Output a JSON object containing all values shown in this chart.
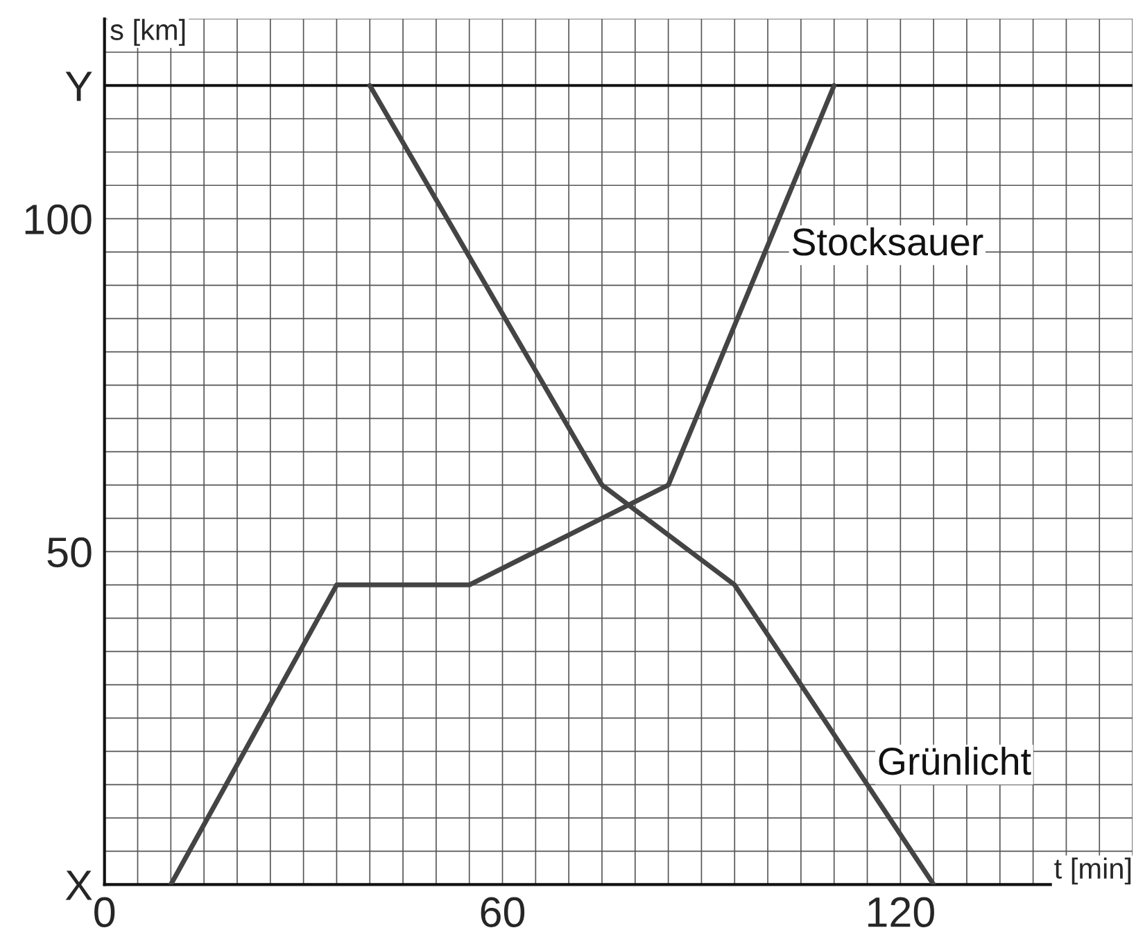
{
  "chart_data": {
    "type": "line",
    "xlabel": "t [min]",
    "ylabel": "s [km]",
    "series": [
      {
        "name": "Stocksauer",
        "color": "#444444",
        "x": [
          10,
          35,
          55,
          85,
          110
        ],
        "values": [
          0,
          45,
          45,
          60,
          120
        ]
      },
      {
        "name": "Grünlicht",
        "color": "#444444",
        "x": [
          40,
          75,
          95,
          125
        ],
        "values": [
          120,
          60,
          45,
          0
        ]
      }
    ],
    "xlim": [
      0,
      155
    ],
    "ylim": [
      0,
      130
    ],
    "xticks": [
      0,
      {
        "value": 5,
        "label": null
      },
      {
        "value": 10,
        "label": null
      },
      {
        "value": 15,
        "label": null
      },
      {
        "value": 20,
        "label": null
      },
      {
        "value": 25,
        "label": null
      },
      {
        "value": 30,
        "label": null
      },
      {
        "value": 35,
        "label": null
      },
      {
        "value": 40,
        "label": null
      },
      {
        "value": 45,
        "label": null
      },
      {
        "value": 50,
        "label": null
      },
      {
        "value": 55,
        "label": null
      },
      60,
      {
        "value": 65,
        "label": null
      },
      {
        "value": 70,
        "label": null
      },
      {
        "value": 75,
        "label": null
      },
      {
        "value": 80,
        "label": null
      },
      {
        "value": 85,
        "label": null
      },
      {
        "value": 90,
        "label": null
      },
      {
        "value": 95,
        "label": null
      },
      {
        "value": 100,
        "label": null
      },
      {
        "value": 105,
        "label": null
      },
      {
        "value": 110,
        "label": null
      },
      {
        "value": 115,
        "label": null
      },
      120,
      {
        "value": 125,
        "label": null
      },
      {
        "value": 130,
        "label": null
      },
      {
        "value": 135,
        "label": null
      },
      {
        "value": 140,
        "label": null
      },
      {
        "value": 145,
        "label": null
      },
      {
        "value": 150,
        "label": null
      },
      {
        "value": 155,
        "label": null
      }
    ],
    "yticks": [
      {
        "value": 0,
        "label": "X"
      },
      {
        "value": 5,
        "label": null
      },
      {
        "value": 10,
        "label": null
      },
      {
        "value": 15,
        "label": null
      },
      {
        "value": 20,
        "label": null
      },
      {
        "value": 25,
        "label": null
      },
      {
        "value": 30,
        "label": null
      },
      {
        "value": 35,
        "label": null
      },
      {
        "value": 40,
        "label": null
      },
      {
        "value": 45,
        "label": null
      },
      50,
      {
        "value": 55,
        "label": null
      },
      {
        "value": 60,
        "label": null
      },
      {
        "value": 65,
        "label": null
      },
      {
        "value": 70,
        "label": null
      },
      {
        "value": 75,
        "label": null
      },
      {
        "value": 80,
        "label": null
      },
      {
        "value": 85,
        "label": null
      },
      {
        "value": 90,
        "label": null
      },
      {
        "value": 95,
        "label": null
      },
      100,
      {
        "value": 105,
        "label": null
      },
      {
        "value": 110,
        "label": null
      },
      {
        "value": 115,
        "label": null
      },
      {
        "value": 120,
        "label": "Y"
      },
      {
        "value": 125,
        "label": null
      },
      {
        "value": 130,
        "label": null
      }
    ],
    "ref_lines": [
      {
        "axis": "y",
        "value": 120,
        "color": "#111111"
      }
    ],
    "grid": true,
    "legend": false,
    "marker": "none",
    "line_style": "solid"
  }
}
